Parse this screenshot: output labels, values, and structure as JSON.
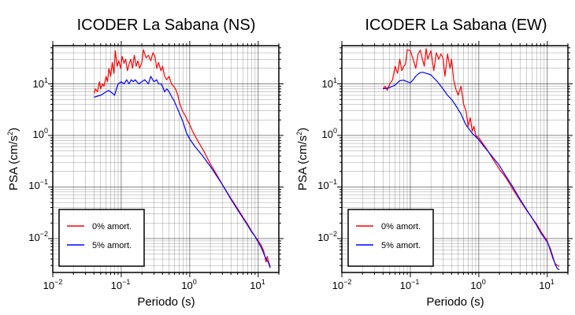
{
  "charts": [
    {
      "title": "ICODER La Sabana (NS)",
      "xlabel": "Periodo (s)",
      "ylabel_main": "PSA (cm/s",
      "ylabel_sup": "2",
      "ylabel_close": ")"
    },
    {
      "title": "ICODER La Sabana (EW)",
      "xlabel": "Periodo (s)",
      "ylabel_main": "PSA (cm/s",
      "ylabel_sup": "2",
      "ylabel_close": ")"
    }
  ],
  "legend": {
    "red_label": "0% amort.",
    "blue_label": "5% amort."
  },
  "x_ticks": [
    {
      "base": "10",
      "exp": "−2"
    },
    {
      "base": "10",
      "exp": "−1"
    },
    {
      "base": "10",
      "exp": "0"
    },
    {
      "base": "10",
      "exp": "1"
    }
  ],
  "y_ticks": [
    {
      "base": "10",
      "exp": "−2"
    },
    {
      "base": "10",
      "exp": "−1"
    },
    {
      "base": "10",
      "exp": "0"
    },
    {
      "base": "10",
      "exp": "1"
    }
  ],
  "chart_data": [
    {
      "type": "line",
      "title": "ICODER La Sabana (NS)",
      "xlabel": "Periodo (s)",
      "ylabel": "PSA (cm/s2)",
      "xscale": "log",
      "yscale": "log",
      "xlim": [
        0.01,
        20
      ],
      "ylim": [
        0.0022,
        55
      ],
      "grid": true,
      "legend_position": "bottom-left",
      "series": [
        {
          "name": "0% amort.",
          "color": "#ff0000",
          "points": [
            [
              0.04,
              6.5
            ],
            [
              0.042,
              8
            ],
            [
              0.045,
              7
            ],
            [
              0.048,
              11
            ],
            [
              0.05,
              8
            ],
            [
              0.053,
              10
            ],
            [
              0.056,
              9
            ],
            [
              0.06,
              14
            ],
            [
              0.063,
              11
            ],
            [
              0.066,
              20
            ],
            [
              0.07,
              14
            ],
            [
              0.074,
              26
            ],
            [
              0.078,
              16
            ],
            [
              0.082,
              44
            ],
            [
              0.087,
              22
            ],
            [
              0.092,
              28
            ],
            [
              0.098,
              20
            ],
            [
              0.103,
              34
            ],
            [
              0.11,
              25
            ],
            [
              0.116,
              30
            ],
            [
              0.123,
              18
            ],
            [
              0.13,
              24
            ],
            [
              0.138,
              30
            ],
            [
              0.146,
              20
            ],
            [
              0.155,
              36
            ],
            [
              0.165,
              22
            ],
            [
              0.175,
              28
            ],
            [
              0.185,
              20
            ],
            [
              0.2,
              26
            ],
            [
              0.21,
              46
            ],
            [
              0.23,
              32
            ],
            [
              0.25,
              36
            ],
            [
              0.27,
              28
            ],
            [
              0.29,
              40
            ],
            [
              0.31,
              34
            ],
            [
              0.33,
              20
            ],
            [
              0.35,
              26
            ],
            [
              0.38,
              18
            ],
            [
              0.4,
              22
            ],
            [
              0.43,
              14
            ],
            [
              0.46,
              12
            ],
            [
              0.5,
              14
            ],
            [
              0.54,
              10
            ],
            [
              0.58,
              9
            ],
            [
              0.62,
              8
            ],
            [
              0.67,
              6
            ],
            [
              0.72,
              4
            ],
            [
              0.78,
              3
            ],
            [
              0.85,
              2.5
            ],
            [
              0.92,
              2
            ],
            [
              1.0,
              1.6
            ],
            [
              1.1,
              1.2
            ],
            [
              1.3,
              0.8
            ],
            [
              1.6,
              0.5
            ],
            [
              2.0,
              0.28
            ],
            [
              2.5,
              0.17
            ],
            [
              3.0,
              0.11
            ],
            [
              4.0,
              0.06
            ],
            [
              5.0,
              0.038
            ],
            [
              6.0,
              0.026
            ],
            [
              7.0,
              0.019
            ],
            [
              8.0,
              0.014
            ],
            [
              9.0,
              0.011
            ],
            [
              10.0,
              0.009
            ],
            [
              11.0,
              0.0075
            ],
            [
              12.0,
              0.0058
            ],
            [
              12.5,
              0.0045
            ],
            [
              13.0,
              0.0035
            ],
            [
              13.5,
              0.0045
            ],
            [
              14.0,
              0.0038
            ],
            [
              15.0,
              0.0028
            ]
          ]
        },
        {
          "name": "5% amort.",
          "color": "#0000ff",
          "points": [
            [
              0.04,
              5.5
            ],
            [
              0.045,
              5.8
            ],
            [
              0.05,
              6
            ],
            [
              0.055,
              6.5
            ],
            [
              0.06,
              7
            ],
            [
              0.065,
              7.5
            ],
            [
              0.07,
              7
            ],
            [
              0.075,
              6.5
            ],
            [
              0.08,
              6
            ],
            [
              0.085,
              8
            ],
            [
              0.09,
              10
            ],
            [
              0.1,
              11
            ],
            [
              0.11,
              10
            ],
            [
              0.12,
              12
            ],
            [
              0.13,
              10
            ],
            [
              0.14,
              12
            ],
            [
              0.15,
              11
            ],
            [
              0.16,
              12
            ],
            [
              0.18,
              10
            ],
            [
              0.2,
              11
            ],
            [
              0.22,
              12
            ],
            [
              0.25,
              10
            ],
            [
              0.27,
              14
            ],
            [
              0.3,
              11
            ],
            [
              0.33,
              12
            ],
            [
              0.35,
              10
            ],
            [
              0.38,
              10
            ],
            [
              0.4,
              9
            ],
            [
              0.43,
              7
            ],
            [
              0.46,
              8
            ],
            [
              0.5,
              7
            ],
            [
              0.55,
              5.5
            ],
            [
              0.6,
              4.5
            ],
            [
              0.65,
              3.5
            ],
            [
              0.7,
              2.8
            ],
            [
              0.8,
              1.8
            ],
            [
              0.9,
              1.1
            ],
            [
              1.0,
              0.85
            ],
            [
              1.2,
              0.6
            ],
            [
              1.5,
              0.42
            ],
            [
              2.0,
              0.25
            ],
            [
              2.5,
              0.16
            ],
            [
              3.0,
              0.11
            ],
            [
              4.0,
              0.058
            ],
            [
              5.0,
              0.036
            ],
            [
              6.0,
              0.025
            ],
            [
              7.0,
              0.018
            ],
            [
              8.0,
              0.0135
            ],
            [
              9.0,
              0.011
            ],
            [
              10.0,
              0.0085
            ],
            [
              11.0,
              0.0068
            ],
            [
              12.0,
              0.0052
            ],
            [
              13.0,
              0.004
            ],
            [
              14.0,
              0.0035
            ],
            [
              15.0,
              0.0027
            ]
          ]
        }
      ]
    },
    {
      "type": "line",
      "title": "ICODER La Sabana (EW)",
      "xlabel": "Periodo (s)",
      "ylabel": "PSA (cm/s2)",
      "xscale": "log",
      "yscale": "log",
      "xlim": [
        0.01,
        20
      ],
      "ylim": [
        0.0022,
        55
      ],
      "grid": true,
      "legend_position": "bottom-left",
      "series": [
        {
          "name": "0% amort.",
          "color": "#ff0000",
          "points": [
            [
              0.04,
              8
            ],
            [
              0.043,
              9
            ],
            [
              0.046,
              7.5
            ],
            [
              0.05,
              10
            ],
            [
              0.055,
              12
            ],
            [
              0.06,
              22
            ],
            [
              0.065,
              16
            ],
            [
              0.07,
              30
            ],
            [
              0.075,
              18
            ],
            [
              0.08,
              22
            ],
            [
              0.085,
              24
            ],
            [
              0.09,
              46
            ],
            [
              0.1,
              44
            ],
            [
              0.11,
              30
            ],
            [
              0.12,
              20
            ],
            [
              0.13,
              38
            ],
            [
              0.14,
              45
            ],
            [
              0.15,
              30
            ],
            [
              0.16,
              22
            ],
            [
              0.17,
              48
            ],
            [
              0.18,
              30
            ],
            [
              0.2,
              44
            ],
            [
              0.22,
              18
            ],
            [
              0.24,
              40
            ],
            [
              0.26,
              30
            ],
            [
              0.28,
              38
            ],
            [
              0.3,
              32
            ],
            [
              0.32,
              14
            ],
            [
              0.35,
              38
            ],
            [
              0.38,
              20
            ],
            [
              0.4,
              30
            ],
            [
              0.43,
              12
            ],
            [
              0.46,
              8
            ],
            [
              0.5,
              6
            ],
            [
              0.55,
              9
            ],
            [
              0.6,
              4
            ],
            [
              0.65,
              3
            ],
            [
              0.7,
              1.5
            ],
            [
              0.75,
              2.2
            ],
            [
              0.8,
              1.2
            ],
            [
              0.85,
              1.5
            ],
            [
              0.9,
              1
            ],
            [
              1.0,
              0.9
            ],
            [
              1.1,
              0.75
            ],
            [
              1.3,
              0.55
            ],
            [
              1.6,
              0.35
            ],
            [
              2.0,
              0.22
            ],
            [
              2.5,
              0.15
            ],
            [
              3.0,
              0.1
            ],
            [
              4.0,
              0.055
            ],
            [
              5.0,
              0.035
            ],
            [
              6.0,
              0.025
            ],
            [
              7.0,
              0.019
            ],
            [
              8.0,
              0.014
            ],
            [
              9.0,
              0.011
            ],
            [
              10.0,
              0.009
            ],
            [
              11.0,
              0.006
            ],
            [
              12.0,
              0.0042
            ],
            [
              13.0,
              0.0033
            ],
            [
              14.0,
              0.003
            ],
            [
              15.0,
              0.0029
            ]
          ]
        },
        {
          "name": "5% amort.",
          "color": "#0000ff",
          "points": [
            [
              0.04,
              8
            ],
            [
              0.045,
              8.2
            ],
            [
              0.05,
              8.5
            ],
            [
              0.055,
              9
            ],
            [
              0.06,
              9.5
            ],
            [
              0.065,
              10.5
            ],
            [
              0.07,
              11.5
            ],
            [
              0.08,
              11.8
            ],
            [
              0.09,
              11
            ],
            [
              0.1,
              10.5
            ],
            [
              0.11,
              12
            ],
            [
              0.12,
              14
            ],
            [
              0.13,
              15.5
            ],
            [
              0.14,
              16.5
            ],
            [
              0.15,
              16.8
            ],
            [
              0.17,
              16
            ],
            [
              0.2,
              15
            ],
            [
              0.22,
              13
            ],
            [
              0.25,
              11
            ],
            [
              0.28,
              9
            ],
            [
              0.3,
              8
            ],
            [
              0.35,
              6
            ],
            [
              0.4,
              5
            ],
            [
              0.45,
              4
            ],
            [
              0.5,
              3.2
            ],
            [
              0.55,
              2.6
            ],
            [
              0.6,
              2
            ],
            [
              0.65,
              1.6
            ],
            [
              0.7,
              1.4
            ],
            [
              0.8,
              1.1
            ],
            [
              0.9,
              0.95
            ],
            [
              1.0,
              0.82
            ],
            [
              1.2,
              0.6
            ],
            [
              1.5,
              0.42
            ],
            [
              2.0,
              0.26
            ],
            [
              2.5,
              0.16
            ],
            [
              3.0,
              0.11
            ],
            [
              4.0,
              0.058
            ],
            [
              5.0,
              0.036
            ],
            [
              6.0,
              0.025
            ],
            [
              7.0,
              0.018
            ],
            [
              8.0,
              0.013
            ],
            [
              9.0,
              0.0105
            ],
            [
              10.0,
              0.0085
            ],
            [
              11.0,
              0.0065
            ],
            [
              12.0,
              0.0045
            ],
            [
              13.0,
              0.0032
            ],
            [
              14.0,
              0.0026
            ],
            [
              15.0,
              0.0025
            ]
          ]
        }
      ]
    }
  ]
}
